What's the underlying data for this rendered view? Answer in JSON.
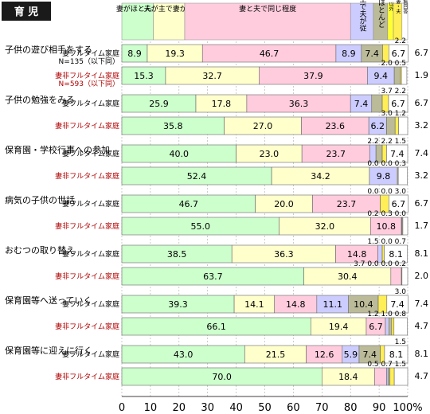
{
  "header": {
    "title": "育 児"
  },
  "chart_data": {
    "type": "bar",
    "stacked": true,
    "orientation": "horizontal",
    "legend_placement": "top",
    "xlim": [
      0,
      100
    ],
    "xticks": [
      "0",
      "10",
      "20",
      "30",
      "40",
      "50",
      "60",
      "70",
      "80",
      "90",
      "100%"
    ],
    "series": [
      {
        "name": "妻がほとんど",
        "color": "#ccffcc"
      },
      {
        "name": "夫が主で妻が従",
        "color": "#ffffcc"
      },
      {
        "name": "妻と夫で同じ程度",
        "color": "#ffccdd"
      },
      {
        "name": "妻が主で夫が従",
        "color": "#ccccff"
      },
      {
        "name": "夫がほとんど",
        "color": "#bbbb99"
      },
      {
        "name": "以外",
        "color": "#ffff33"
      },
      {
        "name": "妻・夫",
        "color": "#ffee55"
      },
      {
        "name": "無回答",
        "color": "#ffffff"
      }
    ],
    "groups": [
      {
        "label": "子供の遊び相手をする",
        "rows": [
          {
            "label": "妻フルタイム家庭",
            "sublabel": "N=135（以下同）",
            "values": [
              8.9,
              19.3,
              46.7,
              8.9,
              7.4,
              0,
              2.2,
              6.7
            ],
            "top_note": "2.2"
          },
          {
            "label": "妻非フルタイム家庭",
            "sublabel": "N=593（以下同）",
            "values": [
              15.3,
              32.7,
              37.9,
              9.4,
              2.0,
              0,
              0.5,
              1.9
            ],
            "top_note": "2.0  0.5"
          }
        ]
      },
      {
        "label": "子供の勉強をみる",
        "rows": [
          {
            "label": "妻フルタイム家庭",
            "values": [
              25.9,
              17.8,
              36.3,
              7.4,
              3.7,
              0,
              2.2,
              6.7
            ],
            "top_note": "3.7       2.2"
          },
          {
            "label": "妻非フルタイム家庭",
            "values": [
              35.8,
              27.0,
              23.6,
              6.2,
              3.0,
              0,
              1.2,
              3.2
            ],
            "top_note": "3.0       1.2"
          }
        ]
      },
      {
        "label": "保育園・学校行事への参加",
        "rows": [
          {
            "label": "妻フルタイム家庭",
            "values": [
              40.0,
              23.0,
              23.7,
              2.2,
              2.2,
              0,
              1.5,
              7.4
            ],
            "top_note": "2.2   2.2   1.5"
          },
          {
            "label": "妻非フルタイム家庭",
            "values": [
              52.4,
              34.2,
              0,
              9.8,
              0,
              0,
              0.3,
              3.2
            ],
            "top_note": "0.0   0.0  0.3"
          }
        ]
      },
      {
        "label": "病気の子供の世話",
        "rows": [
          {
            "label": "妻フルタイム家庭",
            "values": [
              46.7,
              20.0,
              23.7,
              0,
              0,
              0,
              3.0,
              6.7
            ],
            "top_note": "0.0  0.0   3.0"
          },
          {
            "label": "妻非フルタイム家庭",
            "values": [
              55.0,
              32.0,
              10.8,
              0.2,
              0.3,
              0,
              0,
              1.7
            ],
            "top_note": "0.2 0.3  0.0"
          }
        ]
      },
      {
        "label": "おむつの取り替え",
        "rows": [
          {
            "label": "妻フルタイム家庭",
            "values": [
              38.5,
              36.3,
              14.8,
              1.5,
              0,
              0,
              0.7,
              8.1
            ],
            "top_note": "1.5    0.0  0.7"
          },
          {
            "label": "妻非フルタイム家庭",
            "values": [
              63.7,
              30.4,
              3.7,
              0,
              0,
              0,
              0.2,
              2.0
            ],
            "top_note": "3.7  0.0 0.0  0.2"
          }
        ]
      },
      {
        "label": "保育園等へ送っていく",
        "rows": [
          {
            "label": "妻フルタイム家庭",
            "values": [
              39.3,
              14.1,
              14.8,
              11.1,
              10.4,
              0,
              3.0,
              7.4
            ],
            "top_note": "3.0"
          },
          {
            "label": "妻非フルタイム家庭",
            "values": [
              66.1,
              19.4,
              6.7,
              1.2,
              1.0,
              0,
              0.8,
              4.7
            ],
            "top_note": "1.2  1.0   0.8"
          }
        ]
      },
      {
        "label": "保育園等に迎えに行く",
        "rows": [
          {
            "label": "妻フルタイム家庭",
            "values": [
              43.0,
              21.5,
              12.6,
              5.9,
              7.4,
              0,
              1.5,
              8.1
            ],
            "top_note": "1.5"
          },
          {
            "label": "妻非フルタイム家庭",
            "values": [
              70.0,
              18.4,
              4.2,
              0.5,
              0.7,
              0,
              1.5,
              4.7
            ],
            "top_note": "0.5   0.7  1.5"
          }
        ]
      }
    ]
  }
}
